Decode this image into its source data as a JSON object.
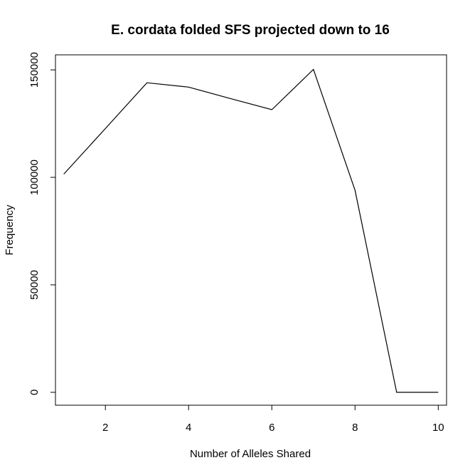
{
  "chart_data": {
    "type": "line",
    "title": "E. cordata folded SFS projected down to 16",
    "xlabel": "Number of Alleles Shared",
    "ylabel": "Frequency",
    "x": [
      1,
      2,
      3,
      4,
      5,
      6,
      7,
      8,
      9,
      10
    ],
    "values": [
      101500,
      122700,
      144000,
      142000,
      136700,
      131500,
      150200,
      94000,
      0,
      0
    ],
    "xlim": [
      0.8,
      10.2
    ],
    "ylim": [
      -6000,
      157000
    ],
    "x_ticks": [
      2,
      4,
      6,
      8,
      10
    ],
    "x_tick_labels": [
      "2",
      "4",
      "6",
      "8",
      "10"
    ],
    "y_ticks": [
      0,
      50000,
      100000,
      150000
    ],
    "y_tick_labels": [
      "0",
      "50000",
      "100000",
      "150000"
    ],
    "line_color": "#000000",
    "grid": false,
    "legend": "none"
  }
}
